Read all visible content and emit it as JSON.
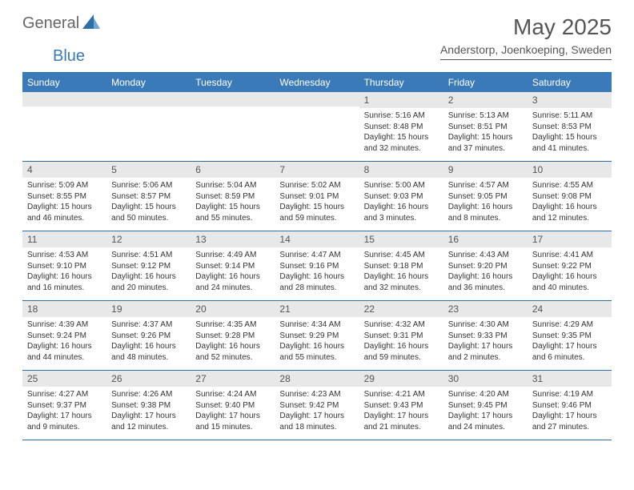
{
  "logo": {
    "general": "General",
    "blue": "Blue"
  },
  "title": "May 2025",
  "subtitle": "Anderstorp, Joenkoeping, Sweden",
  "colors": {
    "header_bar": "#3a7ab8",
    "band": "#e8e8e8",
    "rule": "#2f6fa8",
    "text": "#333333",
    "title_text": "#555555"
  },
  "daysOfWeek": [
    "Sunday",
    "Monday",
    "Tuesday",
    "Wednesday",
    "Thursday",
    "Friday",
    "Saturday"
  ],
  "weeks": [
    [
      null,
      null,
      null,
      null,
      {
        "n": "1",
        "sr": "5:16 AM",
        "ss": "8:48 PM",
        "dl": "15 hours and 32 minutes."
      },
      {
        "n": "2",
        "sr": "5:13 AM",
        "ss": "8:51 PM",
        "dl": "15 hours and 37 minutes."
      },
      {
        "n": "3",
        "sr": "5:11 AM",
        "ss": "8:53 PM",
        "dl": "15 hours and 41 minutes."
      }
    ],
    [
      {
        "n": "4",
        "sr": "5:09 AM",
        "ss": "8:55 PM",
        "dl": "15 hours and 46 minutes."
      },
      {
        "n": "5",
        "sr": "5:06 AM",
        "ss": "8:57 PM",
        "dl": "15 hours and 50 minutes."
      },
      {
        "n": "6",
        "sr": "5:04 AM",
        "ss": "8:59 PM",
        "dl": "15 hours and 55 minutes."
      },
      {
        "n": "7",
        "sr": "5:02 AM",
        "ss": "9:01 PM",
        "dl": "15 hours and 59 minutes."
      },
      {
        "n": "8",
        "sr": "5:00 AM",
        "ss": "9:03 PM",
        "dl": "16 hours and 3 minutes."
      },
      {
        "n": "9",
        "sr": "4:57 AM",
        "ss": "9:05 PM",
        "dl": "16 hours and 8 minutes."
      },
      {
        "n": "10",
        "sr": "4:55 AM",
        "ss": "9:08 PM",
        "dl": "16 hours and 12 minutes."
      }
    ],
    [
      {
        "n": "11",
        "sr": "4:53 AM",
        "ss": "9:10 PM",
        "dl": "16 hours and 16 minutes."
      },
      {
        "n": "12",
        "sr": "4:51 AM",
        "ss": "9:12 PM",
        "dl": "16 hours and 20 minutes."
      },
      {
        "n": "13",
        "sr": "4:49 AM",
        "ss": "9:14 PM",
        "dl": "16 hours and 24 minutes."
      },
      {
        "n": "14",
        "sr": "4:47 AM",
        "ss": "9:16 PM",
        "dl": "16 hours and 28 minutes."
      },
      {
        "n": "15",
        "sr": "4:45 AM",
        "ss": "9:18 PM",
        "dl": "16 hours and 32 minutes."
      },
      {
        "n": "16",
        "sr": "4:43 AM",
        "ss": "9:20 PM",
        "dl": "16 hours and 36 minutes."
      },
      {
        "n": "17",
        "sr": "4:41 AM",
        "ss": "9:22 PM",
        "dl": "16 hours and 40 minutes."
      }
    ],
    [
      {
        "n": "18",
        "sr": "4:39 AM",
        "ss": "9:24 PM",
        "dl": "16 hours and 44 minutes."
      },
      {
        "n": "19",
        "sr": "4:37 AM",
        "ss": "9:26 PM",
        "dl": "16 hours and 48 minutes."
      },
      {
        "n": "20",
        "sr": "4:35 AM",
        "ss": "9:28 PM",
        "dl": "16 hours and 52 minutes."
      },
      {
        "n": "21",
        "sr": "4:34 AM",
        "ss": "9:29 PM",
        "dl": "16 hours and 55 minutes."
      },
      {
        "n": "22",
        "sr": "4:32 AM",
        "ss": "9:31 PM",
        "dl": "16 hours and 59 minutes."
      },
      {
        "n": "23",
        "sr": "4:30 AM",
        "ss": "9:33 PM",
        "dl": "17 hours and 2 minutes."
      },
      {
        "n": "24",
        "sr": "4:29 AM",
        "ss": "9:35 PM",
        "dl": "17 hours and 6 minutes."
      }
    ],
    [
      {
        "n": "25",
        "sr": "4:27 AM",
        "ss": "9:37 PM",
        "dl": "17 hours and 9 minutes."
      },
      {
        "n": "26",
        "sr": "4:26 AM",
        "ss": "9:38 PM",
        "dl": "17 hours and 12 minutes."
      },
      {
        "n": "27",
        "sr": "4:24 AM",
        "ss": "9:40 PM",
        "dl": "17 hours and 15 minutes."
      },
      {
        "n": "28",
        "sr": "4:23 AM",
        "ss": "9:42 PM",
        "dl": "17 hours and 18 minutes."
      },
      {
        "n": "29",
        "sr": "4:21 AM",
        "ss": "9:43 PM",
        "dl": "17 hours and 21 minutes."
      },
      {
        "n": "30",
        "sr": "4:20 AM",
        "ss": "9:45 PM",
        "dl": "17 hours and 24 minutes."
      },
      {
        "n": "31",
        "sr": "4:19 AM",
        "ss": "9:46 PM",
        "dl": "17 hours and 27 minutes."
      }
    ]
  ],
  "labels": {
    "sunrise": "Sunrise:",
    "sunset": "Sunset:",
    "daylight": "Daylight:"
  }
}
